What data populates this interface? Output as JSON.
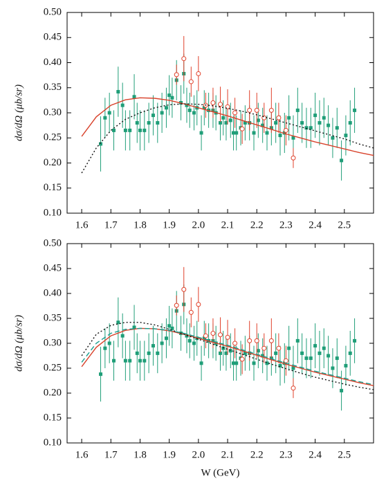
{
  "chart_data": [
    {
      "type": "scatter",
      "ylabel": "dσ/dΩ (μb/sr)",
      "xlim": [
        1.55,
        2.6
      ],
      "ylim": [
        0.1,
        0.5
      ],
      "xticks": [
        1.6,
        1.7,
        1.8,
        1.9,
        {
          "value": 2.0,
          "label": "2.0"
        },
        2.1,
        2.2,
        2.3,
        2.4,
        2.5
      ],
      "yticks": [
        {
          "value": 0.1,
          "label": "0.10"
        },
        0.15,
        {
          "value": 0.2,
          "label": "0.20"
        },
        0.25,
        {
          "value": 0.3,
          "label": "0.30"
        },
        0.35,
        {
          "value": 0.4,
          "label": "0.40"
        },
        0.45,
        {
          "value": 0.5,
          "label": "0.50"
        }
      ],
      "series": [
        {
          "type": "scatter",
          "marker": "square",
          "color": "#1f9e78",
          "x": [
            1.665,
            1.68,
            1.695,
            1.71,
            1.725,
            1.74,
            1.75,
            1.765,
            1.78,
            1.79,
            1.8,
            1.815,
            1.83,
            1.845,
            1.86,
            1.875,
            1.89,
            1.9,
            1.91,
            1.925,
            1.94,
            1.95,
            1.96,
            1.97,
            1.985,
            1.995,
            2.01,
            2.02,
            2.035,
            2.05,
            2.06,
            2.075,
            2.085,
            2.095,
            2.11,
            2.12,
            2.13,
            2.145,
            2.16,
            2.175,
            2.19,
            2.205,
            2.22,
            2.235,
            2.25,
            2.265,
            2.28,
            2.295,
            2.31,
            2.325,
            2.34,
            2.355,
            2.37,
            2.385,
            2.4,
            2.415,
            2.43,
            2.445,
            2.46,
            2.475,
            2.49,
            2.505,
            2.52,
            2.535
          ],
          "values": [
            0.238,
            0.29,
            0.3,
            0.265,
            0.342,
            0.315,
            0.265,
            0.265,
            0.332,
            0.28,
            0.265,
            0.265,
            0.28,
            0.295,
            0.28,
            0.3,
            0.31,
            0.335,
            0.33,
            0.365,
            0.32,
            0.378,
            0.315,
            0.305,
            0.3,
            0.31,
            0.26,
            0.31,
            0.305,
            0.305,
            0.3,
            0.28,
            0.29,
            0.28,
            0.285,
            0.26,
            0.26,
            0.27,
            0.28,
            0.28,
            0.26,
            0.285,
            0.275,
            0.26,
            0.27,
            0.28,
            0.255,
            0.26,
            0.29,
            0.25,
            0.305,
            0.28,
            0.27,
            0.27,
            0.295,
            0.28,
            0.29,
            0.275,
            0.25,
            0.27,
            0.205,
            0.255,
            0.28,
            0.305
          ],
          "errors": [
            0.055,
            0.04,
            0.04,
            0.04,
            0.05,
            0.045,
            0.04,
            0.04,
            0.045,
            0.04,
            0.04,
            0.04,
            0.04,
            0.04,
            0.04,
            0.04,
            0.04,
            0.04,
            0.04,
            0.04,
            0.035,
            0.04,
            0.035,
            0.035,
            0.035,
            0.035,
            0.035,
            0.035,
            0.035,
            0.035,
            0.035,
            0.035,
            0.035,
            0.035,
            0.035,
            0.035,
            0.035,
            0.035,
            0.035,
            0.035,
            0.035,
            0.035,
            0.035,
            0.035,
            0.035,
            0.04,
            0.04,
            0.04,
            0.045,
            0.045,
            0.045,
            0.04,
            0.04,
            0.04,
            0.045,
            0.045,
            0.04,
            0.04,
            0.04,
            0.04,
            0.04,
            0.04,
            0.045,
            0.045
          ]
        },
        {
          "type": "scatter",
          "marker": "circle",
          "color": "#e0402a",
          "x": [
            1.925,
            1.95,
            1.975,
            2.0,
            2.025,
            2.05,
            2.075,
            2.1,
            2.125,
            2.15,
            2.175,
            2.2,
            2.225,
            2.25,
            2.275,
            2.3,
            2.325
          ],
          "values": [
            0.376,
            0.408,
            0.362,
            0.378,
            0.315,
            0.32,
            0.317,
            0.312,
            0.3,
            0.268,
            0.305,
            0.305,
            0.29,
            0.305,
            0.29,
            0.265,
            0.21
          ],
          "errors": [
            0.02,
            0.045,
            0.03,
            0.035,
            0.025,
            0.03,
            0.035,
            0.035,
            0.03,
            0.03,
            0.04,
            0.035,
            0.03,
            0.045,
            0.03,
            0.03,
            0.02
          ]
        },
        {
          "type": "line",
          "style": "solid",
          "color": "#d8412a",
          "x": [
            1.6,
            1.65,
            1.7,
            1.75,
            1.8,
            1.85,
            1.9,
            1.95,
            2.0,
            2.05,
            2.1,
            2.15,
            2.2,
            2.25,
            2.3,
            2.35,
            2.4,
            2.45,
            2.5,
            2.55,
            2.6
          ],
          "values": [
            0.253,
            0.292,
            0.315,
            0.326,
            0.33,
            0.329,
            0.325,
            0.318,
            0.31,
            0.302,
            0.294,
            0.285,
            0.276,
            0.267,
            0.258,
            0.25,
            0.242,
            0.235,
            0.228,
            0.221,
            0.215
          ]
        },
        {
          "type": "line",
          "style": "dotted",
          "color": "#111111",
          "x": [
            1.6,
            1.65,
            1.7,
            1.75,
            1.8,
            1.85,
            1.9,
            1.95,
            2.0,
            2.05,
            2.1,
            2.15,
            2.2,
            2.25,
            2.3,
            2.35,
            2.4,
            2.45,
            2.5,
            2.55,
            2.6
          ],
          "values": [
            0.18,
            0.23,
            0.265,
            0.287,
            0.3,
            0.31,
            0.316,
            0.318,
            0.317,
            0.314,
            0.309,
            0.303,
            0.296,
            0.288,
            0.28,
            0.272,
            0.264,
            0.256,
            0.248,
            0.238,
            0.23
          ]
        }
      ]
    },
    {
      "type": "scatter",
      "ylabel": "dσ/dΩ (μb/sr)",
      "xlabel": "W (GeV)",
      "xlim": [
        1.55,
        2.6
      ],
      "ylim": [
        0.1,
        0.5
      ],
      "xticks": [
        1.6,
        1.7,
        1.8,
        1.9,
        {
          "value": 2.0,
          "label": "2.0"
        },
        2.1,
        2.2,
        2.3,
        2.4,
        2.5
      ],
      "yticks": [
        {
          "value": 0.1,
          "label": "0.10"
        },
        0.15,
        {
          "value": 0.2,
          "label": "0.20"
        },
        0.25,
        {
          "value": 0.3,
          "label": "0.30"
        },
        0.35,
        {
          "value": 0.4,
          "label": "0.40"
        },
        0.45,
        {
          "value": 0.5,
          "label": "0.50"
        }
      ],
      "series": [
        {
          "type": "scatter",
          "marker": "square",
          "color": "#1f9e78",
          "x": [
            1.665,
            1.68,
            1.695,
            1.71,
            1.725,
            1.74,
            1.75,
            1.765,
            1.78,
            1.79,
            1.8,
            1.815,
            1.83,
            1.845,
            1.86,
            1.875,
            1.89,
            1.9,
            1.91,
            1.925,
            1.94,
            1.95,
            1.96,
            1.97,
            1.985,
            1.995,
            2.01,
            2.02,
            2.035,
            2.05,
            2.06,
            2.075,
            2.085,
            2.095,
            2.11,
            2.12,
            2.13,
            2.145,
            2.16,
            2.175,
            2.19,
            2.205,
            2.22,
            2.235,
            2.25,
            2.265,
            2.28,
            2.295,
            2.31,
            2.325,
            2.34,
            2.355,
            2.37,
            2.385,
            2.4,
            2.415,
            2.43,
            2.445,
            2.46,
            2.475,
            2.49,
            2.505,
            2.52,
            2.535
          ],
          "values": [
            0.238,
            0.29,
            0.3,
            0.265,
            0.342,
            0.315,
            0.265,
            0.265,
            0.332,
            0.28,
            0.265,
            0.265,
            0.28,
            0.295,
            0.28,
            0.3,
            0.31,
            0.335,
            0.33,
            0.365,
            0.32,
            0.378,
            0.315,
            0.305,
            0.3,
            0.31,
            0.26,
            0.31,
            0.305,
            0.305,
            0.3,
            0.28,
            0.29,
            0.28,
            0.285,
            0.26,
            0.26,
            0.27,
            0.28,
            0.28,
            0.26,
            0.285,
            0.275,
            0.26,
            0.27,
            0.28,
            0.255,
            0.26,
            0.29,
            0.25,
            0.305,
            0.28,
            0.27,
            0.27,
            0.295,
            0.28,
            0.29,
            0.275,
            0.25,
            0.27,
            0.205,
            0.255,
            0.28,
            0.305
          ],
          "errors": [
            0.055,
            0.04,
            0.04,
            0.04,
            0.05,
            0.045,
            0.04,
            0.04,
            0.045,
            0.04,
            0.04,
            0.04,
            0.04,
            0.04,
            0.04,
            0.04,
            0.04,
            0.04,
            0.04,
            0.04,
            0.035,
            0.04,
            0.035,
            0.035,
            0.035,
            0.035,
            0.035,
            0.035,
            0.035,
            0.035,
            0.035,
            0.035,
            0.035,
            0.035,
            0.035,
            0.035,
            0.035,
            0.035,
            0.035,
            0.035,
            0.035,
            0.035,
            0.035,
            0.035,
            0.035,
            0.04,
            0.04,
            0.04,
            0.045,
            0.045,
            0.045,
            0.04,
            0.04,
            0.04,
            0.045,
            0.045,
            0.04,
            0.04,
            0.04,
            0.04,
            0.04,
            0.04,
            0.045,
            0.045
          ]
        },
        {
          "type": "scatter",
          "marker": "circle",
          "color": "#e0402a",
          "x": [
            1.925,
            1.95,
            1.975,
            2.0,
            2.025,
            2.05,
            2.075,
            2.1,
            2.125,
            2.15,
            2.175,
            2.2,
            2.225,
            2.25,
            2.275,
            2.3,
            2.325
          ],
          "values": [
            0.376,
            0.408,
            0.362,
            0.378,
            0.315,
            0.32,
            0.317,
            0.312,
            0.3,
            0.268,
            0.305,
            0.305,
            0.29,
            0.305,
            0.29,
            0.265,
            0.21
          ],
          "errors": [
            0.02,
            0.045,
            0.03,
            0.035,
            0.025,
            0.03,
            0.035,
            0.035,
            0.03,
            0.03,
            0.04,
            0.035,
            0.03,
            0.045,
            0.03,
            0.03,
            0.02
          ]
        },
        {
          "type": "line",
          "style": "solid",
          "color": "#d8412a",
          "x": [
            1.6,
            1.65,
            1.7,
            1.75,
            1.8,
            1.85,
            1.9,
            1.95,
            2.0,
            2.05,
            2.1,
            2.15,
            2.2,
            2.25,
            2.3,
            2.35,
            2.4,
            2.45,
            2.5,
            2.55,
            2.6
          ],
          "values": [
            0.253,
            0.292,
            0.315,
            0.326,
            0.33,
            0.329,
            0.325,
            0.318,
            0.31,
            0.302,
            0.294,
            0.285,
            0.276,
            0.267,
            0.258,
            0.25,
            0.242,
            0.235,
            0.228,
            0.221,
            0.215
          ]
        },
        {
          "type": "line",
          "style": "dotted",
          "color": "#111111",
          "x": [
            1.6,
            1.65,
            1.7,
            1.75,
            1.8,
            1.85,
            1.9,
            1.95,
            2.0,
            2.05,
            2.1,
            2.15,
            2.2,
            2.25,
            2.3,
            2.35,
            2.4,
            2.45,
            2.5,
            2.55,
            2.6
          ],
          "values": [
            0.275,
            0.318,
            0.336,
            0.342,
            0.342,
            0.337,
            0.328,
            0.318,
            0.308,
            0.298,
            0.288,
            0.278,
            0.268,
            0.258,
            0.249,
            0.24,
            0.232,
            0.225,
            0.218,
            0.212,
            0.207
          ]
        },
        {
          "type": "line",
          "style": "dashed",
          "color": "#1a9e8f",
          "x": [
            1.6,
            1.65,
            1.7,
            1.75,
            1.8,
            1.85,
            1.9,
            1.95,
            2.0,
            2.05,
            2.1,
            2.15,
            2.2,
            2.25,
            2.3,
            2.35,
            2.4,
            2.45,
            2.5,
            2.55,
            2.6
          ],
          "values": [
            0.262,
            0.3,
            0.32,
            0.328,
            0.33,
            0.329,
            0.326,
            0.32,
            0.312,
            0.304,
            0.296,
            0.287,
            0.278,
            0.269,
            0.26,
            0.252,
            0.244,
            0.237,
            0.23,
            0.223,
            0.217
          ]
        }
      ]
    }
  ]
}
